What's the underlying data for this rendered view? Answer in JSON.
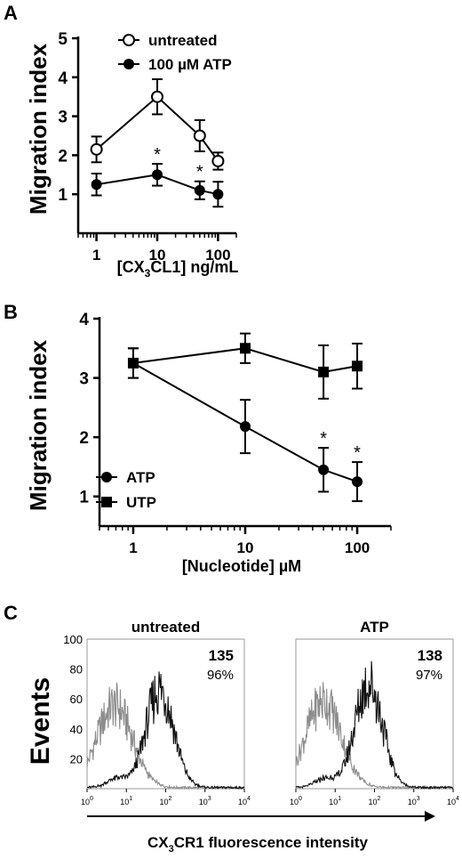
{
  "panels": {
    "a": "A",
    "b": "B",
    "c": "C"
  },
  "chart_data": [
    {
      "type": "line",
      "panel": "A",
      "xscale": "log",
      "xlim": [
        0.5,
        200
      ],
      "ylim": [
        0,
        5
      ],
      "xticks": [
        "1",
        "10",
        "100"
      ],
      "yticks": [
        "1",
        "2",
        "3",
        "4",
        "5"
      ],
      "xlabel": {
        "pre": "[CX",
        "sub": "3",
        "post": "CL1] ng/mL"
      },
      "ylabel": "Migration index",
      "legend": {
        "position": "top-left"
      },
      "series": [
        {
          "name": "untreated",
          "marker": "open-circle",
          "x": [
            1,
            10,
            50,
            100
          ],
          "y": [
            2.15,
            3.5,
            2.5,
            1.85
          ],
          "err": [
            0.33,
            0.45,
            0.4,
            0.22
          ],
          "sig": [
            "",
            "",
            "",
            ""
          ]
        },
        {
          "name": "100 µM ATP",
          "marker": "filled-circle",
          "x": [
            1,
            10,
            50,
            100
          ],
          "y": [
            1.25,
            1.5,
            1.1,
            1.0
          ],
          "err": [
            0.28,
            0.28,
            0.23,
            0.32
          ],
          "sig": [
            "",
            "*",
            "*",
            ""
          ]
        }
      ]
    },
    {
      "type": "line",
      "panel": "B",
      "xscale": "log",
      "xlim": [
        0.5,
        200
      ],
      "ylim": [
        0.5,
        4
      ],
      "xticks": [
        "1",
        "10",
        "100"
      ],
      "yticks": [
        "1",
        "2",
        "3",
        "4"
      ],
      "xlabel": "[Nucleotide] µM",
      "ylabel": "Migration index",
      "legend": {
        "position": "bottom-left"
      },
      "series": [
        {
          "name": "ATP",
          "marker": "filled-circle",
          "x": [
            1,
            10,
            50,
            100
          ],
          "y": [
            3.25,
            2.18,
            1.45,
            1.25
          ],
          "err": [
            0.25,
            0.45,
            0.37,
            0.33
          ],
          "sig": [
            "",
            "",
            "*",
            "*"
          ]
        },
        {
          "name": "UTP",
          "marker": "filled-square",
          "x": [
            1,
            10,
            50,
            100
          ],
          "y": [
            3.25,
            3.5,
            3.1,
            3.2
          ],
          "err": [
            0.25,
            0.25,
            0.45,
            0.38
          ],
          "sig": [
            "",
            "",
            "",
            ""
          ]
        }
      ]
    },
    {
      "type": "histogram",
      "panel": "C",
      "ylabel": "Events",
      "ylim": [
        0,
        100
      ],
      "yticks": [
        "20",
        "40",
        "60",
        "80",
        "100"
      ],
      "xscale": "log",
      "xtick_values": [
        "0",
        "1",
        "2",
        "3",
        "4"
      ],
      "xlabel": {
        "pre": "CX",
        "sub": "3",
        "post": "CR1 fluorescence intensity"
      },
      "subplots": [
        {
          "title": "untreated",
          "mfi": "135",
          "percent": "96%",
          "isotype_peak_decade": 0.7,
          "isotype_peak": 55,
          "stained_peak_decade": 1.85,
          "stained_peak": 66
        },
        {
          "title": "ATP",
          "mfi": "138",
          "percent": "97%",
          "isotype_peak_decade": 0.7,
          "isotype_peak": 58,
          "stained_peak_decade": 1.85,
          "stained_peak": 70
        }
      ]
    }
  ]
}
